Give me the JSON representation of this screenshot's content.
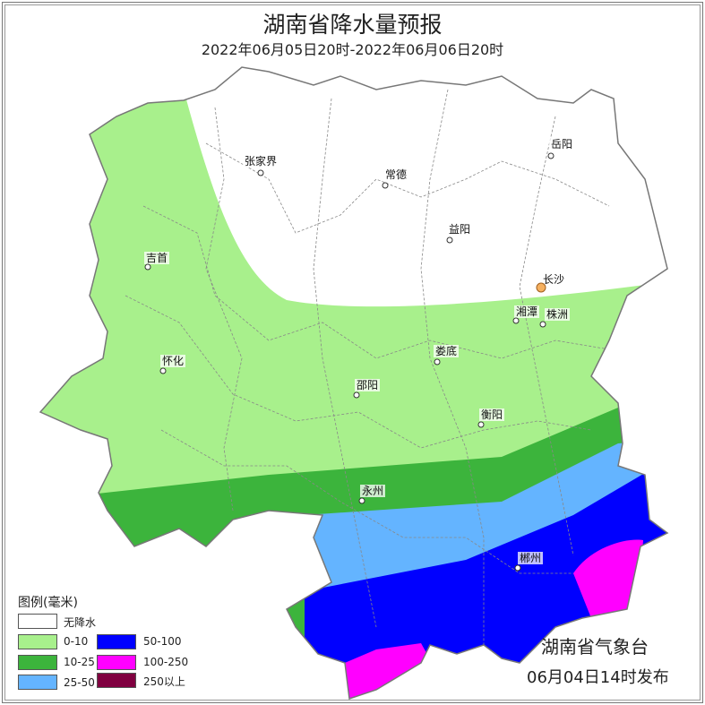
{
  "title": "湖南省降水量预报",
  "subtitle": "2022年06月05日20时-2022年06月06日20时",
  "cities": [
    {
      "name": "张家界"
    },
    {
      "name": "常德"
    },
    {
      "name": "岳阳"
    },
    {
      "name": "益阳"
    },
    {
      "name": "吉首"
    },
    {
      "name": "长沙"
    },
    {
      "name": "湘潭"
    },
    {
      "name": "株洲"
    },
    {
      "name": "怀化"
    },
    {
      "name": "娄底"
    },
    {
      "name": "邵阳"
    },
    {
      "name": "衡阳"
    },
    {
      "name": "永州"
    },
    {
      "name": "郴州"
    }
  ],
  "legend": {
    "title": "图例(毫米)",
    "items": [
      {
        "label": "无降水",
        "color": "#ffffff"
      },
      {
        "label": "0-10",
        "color": "#a8f08c"
      },
      {
        "label": "10-25",
        "color": "#3cb43c"
      },
      {
        "label": "25-50",
        "color": "#64b4ff"
      },
      {
        "label": "50-100",
        "color": "#0000ff"
      },
      {
        "label": "100-250",
        "color": "#ff00ff"
      },
      {
        "label": "250以上",
        "color": "#800040"
      }
    ]
  },
  "agency": "湖南省气象台",
  "issued": "06月04日14时发布"
}
